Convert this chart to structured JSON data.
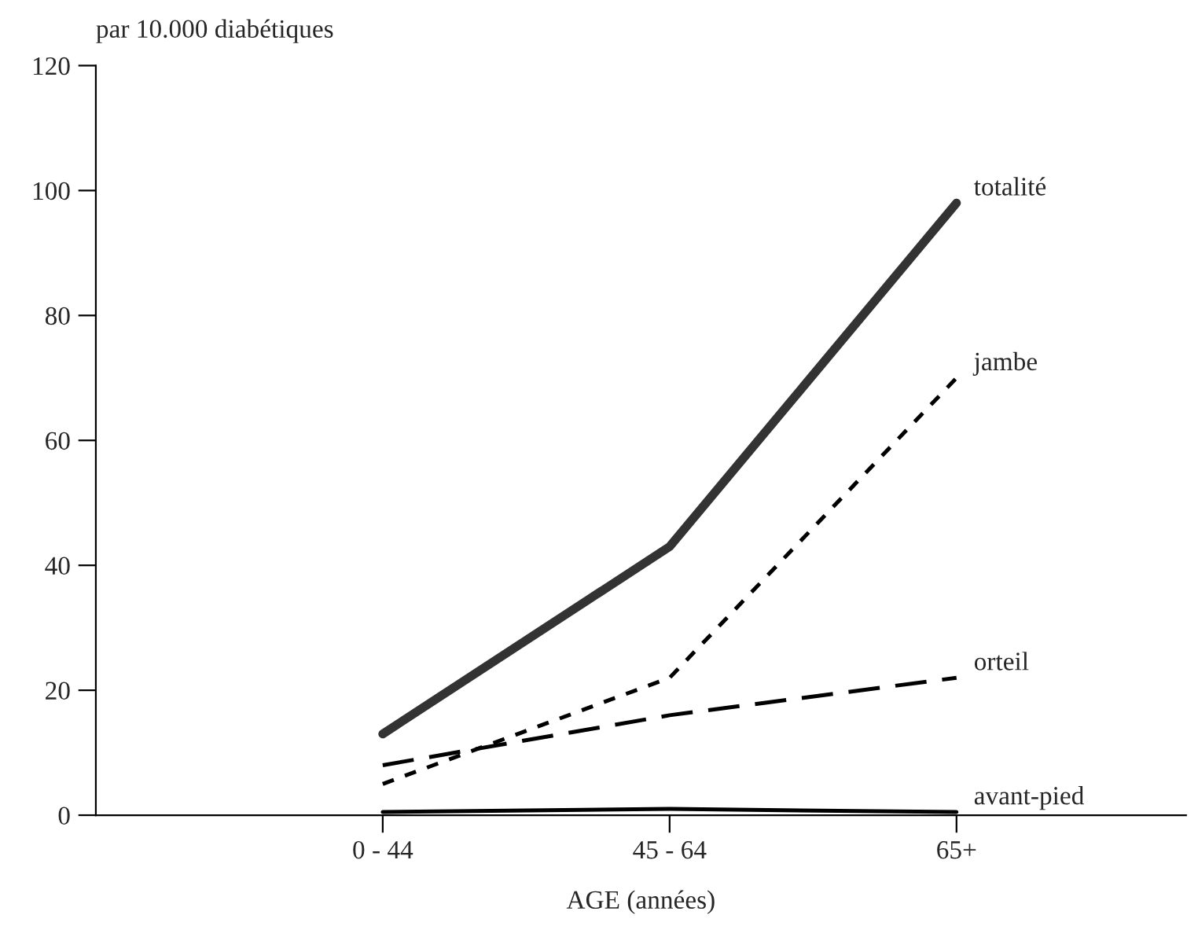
{
  "chart_data": {
    "type": "line",
    "ylabel": "par 10.000 diabétiques",
    "xlabel": "AGE (années)",
    "categories": [
      "0 - 44",
      "45 - 64",
      "65+"
    ],
    "ylim": [
      0,
      120
    ],
    "yticks": [
      0,
      20,
      40,
      60,
      80,
      100,
      120
    ],
    "grid": false,
    "legend": false,
    "marker": "none",
    "series": [
      {
        "name": "totalité",
        "color": "#333333",
        "values": [
          13,
          43,
          98
        ],
        "line_style": "solid"
      },
      {
        "name": "jambe",
        "color": "#000000",
        "values": [
          5,
          22,
          70
        ],
        "line_style": "dotted"
      },
      {
        "name": "orteil",
        "color": "#000000",
        "values": [
          8,
          16,
          22
        ],
        "line_style": "dashed"
      },
      {
        "name": "avant-pied",
        "color": "#000000",
        "values": [
          0.5,
          1,
          0.5
        ],
        "line_style": "solid"
      }
    ]
  }
}
